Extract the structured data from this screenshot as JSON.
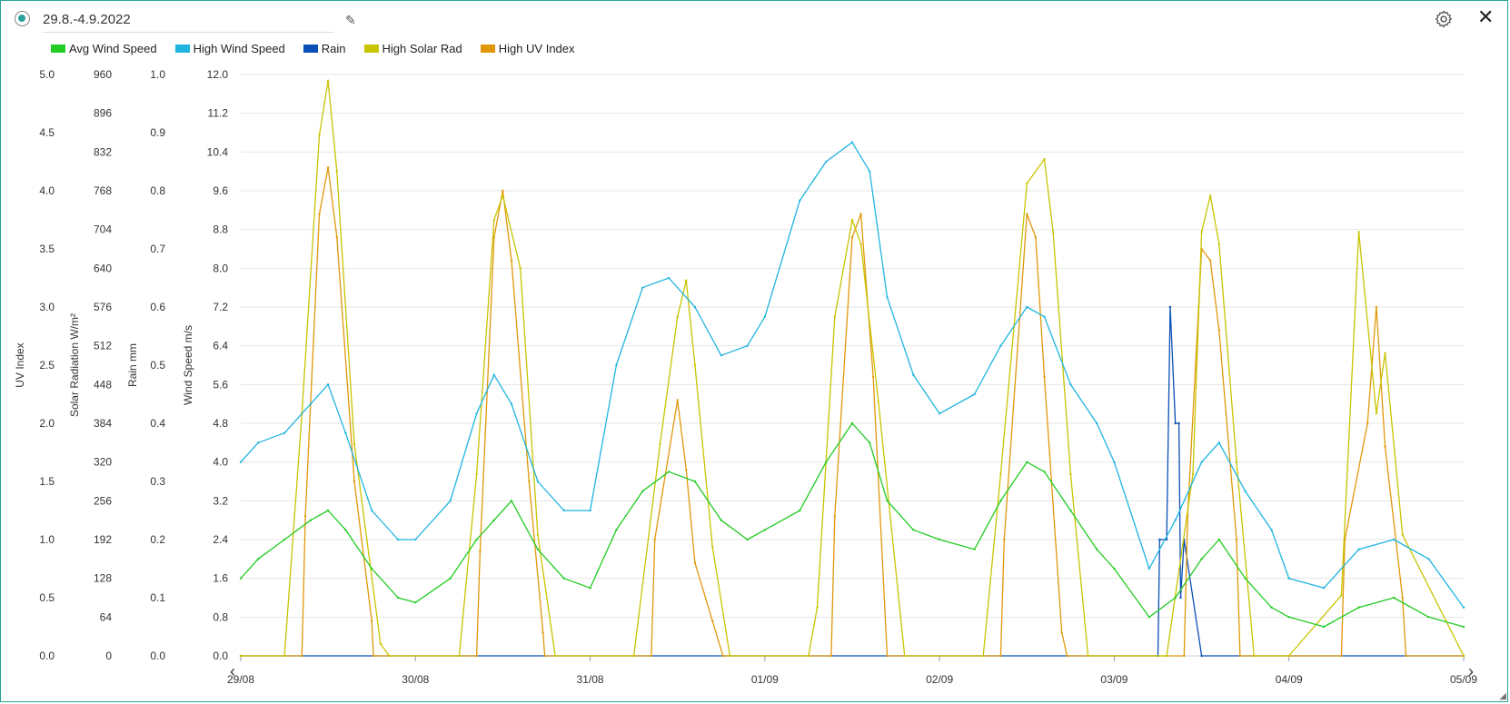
{
  "header": {
    "date_range": "29.8.-4.9.2022"
  },
  "icons": {
    "settings": "gear-icon",
    "close": "close-icon",
    "edit": "pencil-icon"
  },
  "legend": [
    {
      "name": "Avg Wind Speed",
      "color": "#22cc22"
    },
    {
      "name": "High Wind Speed",
      "color": "#1fb4e0"
    },
    {
      "name": "Rain",
      "color": "#0a4fb5"
    },
    {
      "name": "High Solar Rad",
      "color": "#c8c400"
    },
    {
      "name": "High UV Index",
      "color": "#e0980a"
    }
  ],
  "chart_data": {
    "type": "line",
    "x_ticks": [
      "29/08",
      "30/08",
      "31/08",
      "01/09",
      "02/09",
      "03/09",
      "04/09",
      "05/09"
    ],
    "axes": {
      "uv": {
        "label": "UV Index",
        "range": [
          0,
          5
        ],
        "ticks": [
          "0.0",
          "0.5",
          "1.0",
          "1.5",
          "2.0",
          "2.5",
          "3.0",
          "3.5",
          "4.0",
          "4.5",
          "5.0"
        ]
      },
      "solar": {
        "label": "Solar Radiation W/m²",
        "range": [
          0,
          960
        ],
        "ticks": [
          "0",
          "64",
          "128",
          "192",
          "256",
          "320",
          "384",
          "448",
          "512",
          "576",
          "640",
          "704",
          "768",
          "832",
          "896",
          "960"
        ]
      },
      "rain": {
        "label": "Rain mm",
        "range": [
          0,
          1
        ],
        "ticks": [
          "0.0",
          "0.1",
          "0.2",
          "0.3",
          "0.4",
          "0.5",
          "0.6",
          "0.7",
          "0.8",
          "0.9",
          "1.0"
        ]
      },
      "wind": {
        "label": "Wind Speed m/s",
        "range": [
          0,
          12
        ],
        "ticks": [
          "0.0",
          "0.8",
          "1.6",
          "2.4",
          "3.2",
          "4.0",
          "4.8",
          "5.6",
          "6.4",
          "7.2",
          "8.0",
          "8.8",
          "9.6",
          "10.4",
          "11.2",
          "12.0"
        ]
      }
    },
    "grid": true,
    "legend_position": "top-left",
    "series": [
      {
        "name": "Avg Wind Speed",
        "axis": "wind",
        "color": "#22cc22",
        "x": [
          0,
          0.1,
          0.25,
          0.4,
          0.5,
          0.6,
          0.75,
          0.9,
          1.0,
          1.2,
          1.35,
          1.45,
          1.55,
          1.7,
          1.85,
          2.0,
          2.15,
          2.3,
          2.45,
          2.6,
          2.75,
          2.9,
          3.0,
          3.2,
          3.35,
          3.5,
          3.6,
          3.7,
          3.85,
          4.0,
          4.2,
          4.35,
          4.5,
          4.6,
          4.75,
          4.9,
          5.0,
          5.2,
          5.35,
          5.5,
          5.6,
          5.75,
          5.9,
          6.0,
          6.2,
          6.4,
          6.6,
          6.8,
          7.0
        ],
        "y": [
          1.6,
          2.0,
          2.4,
          2.8,
          3.0,
          2.6,
          1.8,
          1.2,
          1.1,
          1.6,
          2.4,
          2.8,
          3.2,
          2.2,
          1.6,
          1.4,
          2.6,
          3.4,
          3.8,
          3.6,
          2.8,
          2.4,
          2.6,
          3.0,
          4.0,
          4.8,
          4.4,
          3.2,
          2.6,
          2.4,
          2.2,
          3.2,
          4.0,
          3.8,
          3.0,
          2.2,
          1.8,
          0.8,
          1.2,
          2.0,
          2.4,
          1.6,
          1.0,
          0.8,
          0.6,
          1.0,
          1.2,
          0.8,
          0.6
        ]
      },
      {
        "name": "High Wind Speed",
        "axis": "wind",
        "color": "#1fb4e0",
        "x": [
          0,
          0.1,
          0.25,
          0.4,
          0.5,
          0.6,
          0.75,
          0.9,
          1.0,
          1.2,
          1.35,
          1.45,
          1.55,
          1.7,
          1.85,
          2.0,
          2.15,
          2.3,
          2.45,
          2.6,
          2.75,
          2.9,
          3.0,
          3.2,
          3.35,
          3.5,
          3.6,
          3.7,
          3.85,
          4.0,
          4.2,
          4.35,
          4.5,
          4.6,
          4.75,
          4.9,
          5.0,
          5.2,
          5.35,
          5.5,
          5.6,
          5.75,
          5.9,
          6.0,
          6.2,
          6.4,
          6.6,
          6.8,
          7.0
        ],
        "y": [
          4.0,
          4.4,
          4.6,
          5.2,
          5.6,
          4.6,
          3.0,
          2.4,
          2.4,
          3.2,
          5.0,
          5.8,
          5.2,
          3.6,
          3.0,
          3.0,
          6.0,
          7.6,
          7.8,
          7.2,
          6.2,
          6.4,
          7.0,
          9.4,
          10.2,
          10.6,
          10.0,
          7.4,
          5.8,
          5.0,
          5.4,
          6.4,
          7.2,
          7.0,
          5.6,
          4.8,
          4.0,
          1.8,
          2.8,
          4.0,
          4.4,
          3.4,
          2.6,
          1.6,
          1.4,
          2.2,
          2.4,
          2.0,
          1.0
        ]
      },
      {
        "name": "Rain",
        "axis": "rain",
        "color": "#0a4fb5",
        "x": [
          0,
          5.25,
          5.26,
          5.3,
          5.32,
          5.35,
          5.37,
          5.38,
          5.4,
          5.5,
          7.0
        ],
        "y": [
          0,
          0,
          0.2,
          0.2,
          0.6,
          0.4,
          0.4,
          0.1,
          0.2,
          0,
          0
        ]
      },
      {
        "name": "High Solar Rad",
        "axis": "solar",
        "color": "#c8c400",
        "x": [
          0,
          0.25,
          0.35,
          0.45,
          0.5,
          0.55,
          0.65,
          0.8,
          0.85,
          1.25,
          1.35,
          1.45,
          1.5,
          1.6,
          1.7,
          1.8,
          2.25,
          2.4,
          2.5,
          2.55,
          2.6,
          2.7,
          2.8,
          3.25,
          3.3,
          3.4,
          3.5,
          3.55,
          3.65,
          3.8,
          4.25,
          4.35,
          4.5,
          4.6,
          4.65,
          4.75,
          4.85,
          5.3,
          5.45,
          5.5,
          5.55,
          5.6,
          5.7,
          5.8,
          6.0,
          6.3,
          6.4,
          6.5,
          6.55,
          6.65,
          7.0
        ],
        "y": [
          0,
          0,
          400,
          860,
          950,
          800,
          350,
          20,
          0,
          0,
          300,
          720,
          760,
          640,
          200,
          0,
          0,
          350,
          560,
          620,
          480,
          180,
          0,
          0,
          80,
          560,
          720,
          680,
          420,
          0,
          0,
          300,
          780,
          820,
          700,
          300,
          0,
          0,
          300,
          700,
          760,
          680,
          320,
          0,
          0,
          100,
          700,
          400,
          500,
          200,
          0
        ]
      },
      {
        "name": "High UV Index",
        "axis": "uv",
        "color": "#e0980a",
        "x": [
          0,
          0.35,
          0.37,
          0.45,
          0.5,
          0.55,
          0.65,
          0.75,
          0.76,
          1.35,
          1.37,
          1.45,
          1.5,
          1.55,
          1.65,
          1.73,
          1.74,
          2.35,
          2.37,
          2.5,
          2.55,
          2.6,
          2.7,
          2.76,
          3.38,
          3.4,
          3.5,
          3.55,
          3.62,
          3.7,
          4.35,
          4.37,
          4.5,
          4.55,
          4.6,
          4.7,
          4.73,
          5.4,
          5.42,
          5.5,
          5.55,
          5.6,
          5.7,
          5.72,
          6.3,
          6.32,
          6.45,
          6.5,
          6.55,
          6.65,
          6.67,
          7.0
        ],
        "y": [
          0,
          0,
          1.2,
          3.8,
          4.2,
          3.6,
          1.5,
          0.3,
          0,
          0,
          0.9,
          3.6,
          4.0,
          3.4,
          1.5,
          0.2,
          0,
          0,
          1.0,
          2.2,
          1.6,
          0.8,
          0.3,
          0,
          0,
          1.2,
          3.6,
          3.8,
          2.4,
          0,
          0,
          1.0,
          3.8,
          3.6,
          2.4,
          0.2,
          0,
          0,
          1.2,
          3.5,
          3.4,
          2.8,
          1.0,
          0,
          0,
          1.0,
          2.0,
          3.0,
          1.8,
          0.5,
          0,
          0
        ]
      }
    ]
  }
}
